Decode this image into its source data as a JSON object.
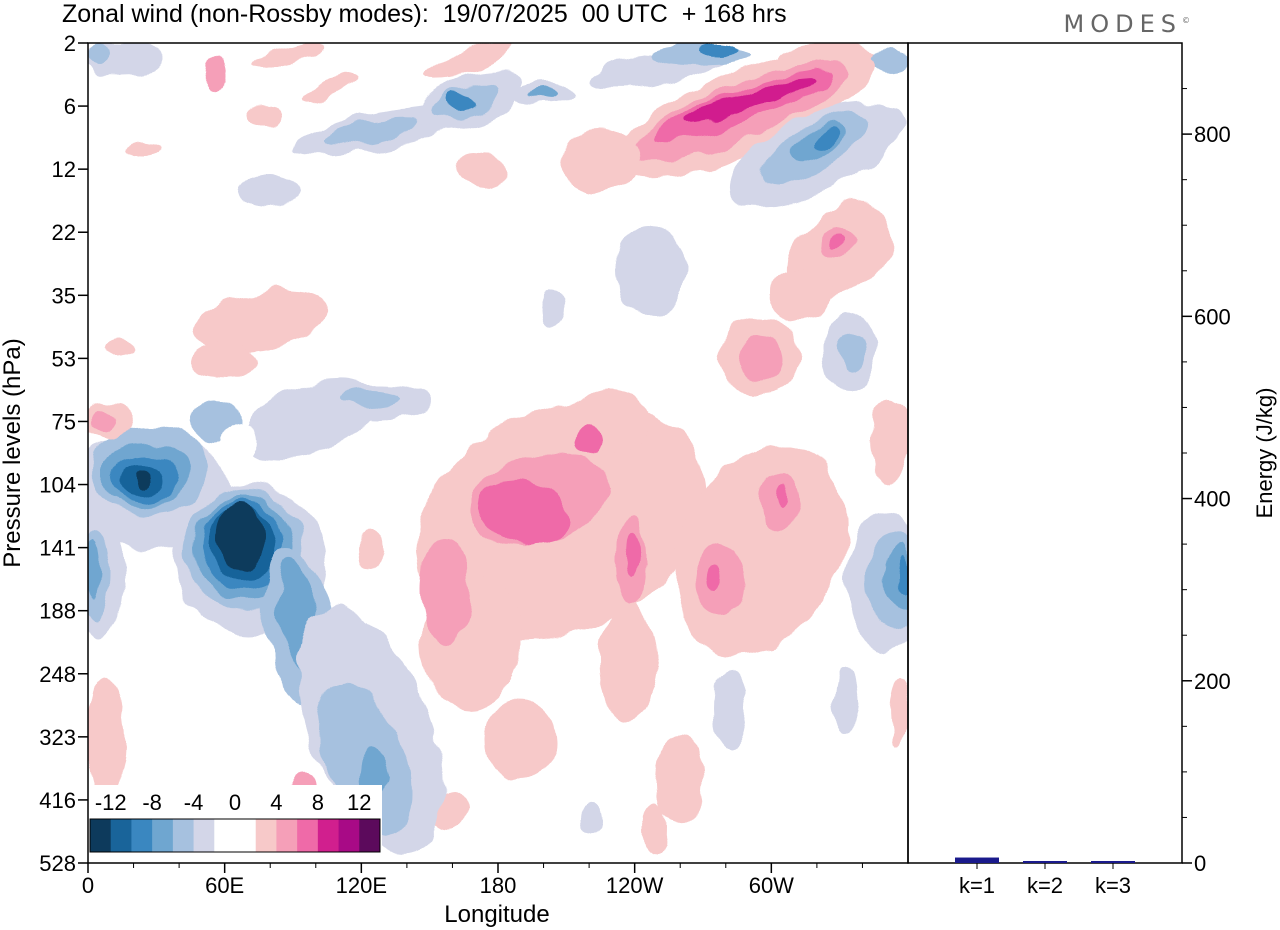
{
  "header": {
    "title": "Zonal wind (non-Rossby modes):  19/07/2025  00 UTC  + 168 hrs",
    "brand": "MODES",
    "brand_mark": "©"
  },
  "chart_data": [
    {
      "type": "heatmap",
      "title": "Zonal wind (non-Rossby modes)",
      "xlabel": "Longitude",
      "ylabel": "Pressure levels (hPa)",
      "x_ticks": [
        "0",
        "60E",
        "120E",
        "180",
        "120W",
        "60W"
      ],
      "x_range_deg": [
        0,
        360
      ],
      "y_ticks": [
        "2",
        "6",
        "12",
        "22",
        "35",
        "53",
        "75",
        "104",
        "141",
        "188",
        "248",
        "323",
        "416",
        "528"
      ],
      "colorbar": {
        "labels": [
          "-12",
          "-8",
          "-4",
          "0",
          "4",
          "8",
          "12"
        ],
        "colors": [
          "#0d3a5c",
          "#19649a",
          "#3a87c0",
          "#6fa6d0",
          "#a6c1df",
          "#d3d6e8",
          "#ffffff",
          "#ffffff",
          "#f7c9c9",
          "#f59fb8",
          "#ef6aa8",
          "#d11f8e",
          "#a80a86",
          "#5c0a5c"
        ]
      },
      "regions": [
        {
          "name": "blue-104-40e",
          "level": -12,
          "lon": 25,
          "lev": 104
        },
        {
          "name": "blue-141-65e",
          "level": -12,
          "lon": 66,
          "lev": 141
        },
        {
          "name": "pink-6-100w",
          "level": 12,
          "lon": 258,
          "lev": 6
        },
        {
          "name": "pink-141-180",
          "level": 8,
          "lon": 188,
          "lev": 141
        },
        {
          "name": "blue-10-75w",
          "level": -8,
          "lon": 295,
          "lev": 10
        }
      ]
    },
    {
      "type": "bar",
      "ylabel": "Energy (J/kg)",
      "categories": [
        "k=1",
        "k=2",
        "k=3"
      ],
      "values": [
        6,
        2,
        1
      ],
      "ylim": [
        0,
        900
      ],
      "y_ticks": [
        0,
        200,
        400,
        600,
        800
      ],
      "bar_color": "#1a1a8c"
    }
  ]
}
